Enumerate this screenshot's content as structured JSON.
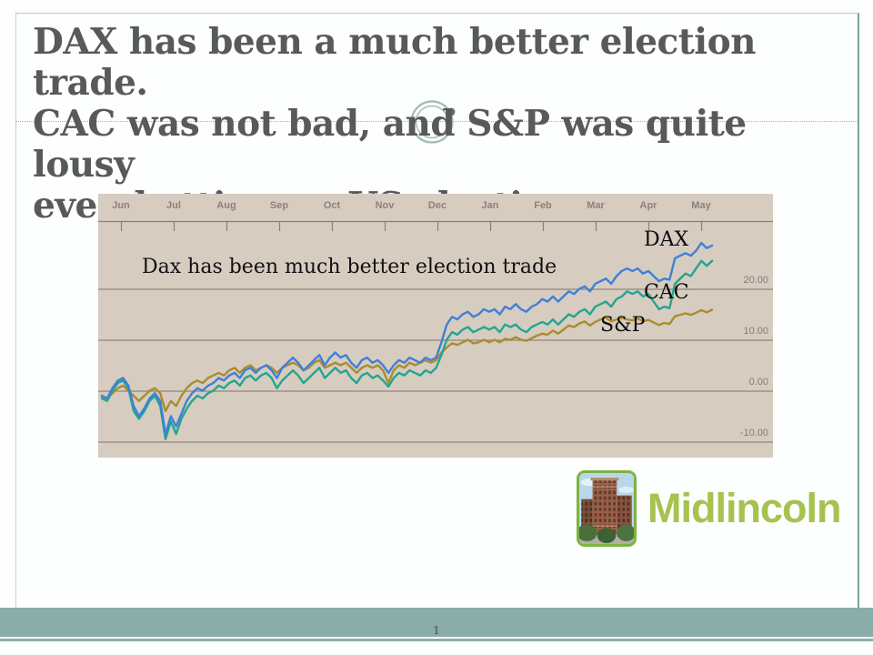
{
  "slide": {
    "title_lines": [
      "DAX has been a much better election trade.",
      "CAC was not bad, and S&P was quite lousy",
      "even betting on US election"
    ],
    "page_number": "1"
  },
  "logo": {
    "name": "Midlincoln",
    "icon": "building-photo-icon",
    "accent_color": "#a6c24f",
    "border_color": "#7cb342"
  },
  "theme": {
    "footer_color": "#8badaa",
    "title_color": "#57595a",
    "ornament_color": "#a3bab7"
  },
  "chart_data": {
    "type": "line",
    "title_annotation": "Dax has been much better election trade",
    "plot_bg": "#d7ccc0",
    "grid_on": true,
    "gridline_color": "#8e857a",
    "axis_color": "#8a8176",
    "unit": "percent return since Jun",
    "x_axis": {
      "position": "top",
      "tick_labels": [
        "Jun",
        "Jul",
        "Aug",
        "Sep",
        "Oct",
        "Nov",
        "Dec",
        "Jan",
        "Feb",
        "Mar",
        "Apr",
        "May"
      ]
    },
    "y_axis": {
      "position": "right",
      "ticks": [
        20,
        10,
        0,
        -10
      ],
      "tick_labels": [
        "20.00",
        "10.00",
        "0.00",
        "-10.00"
      ],
      "ylim": [
        -14,
        32
      ]
    },
    "legend_position": "inline-labels-right",
    "series": [
      {
        "name": "S&P",
        "color": "#a98d2e",
        "values": [
          -1,
          -1.5,
          -0.5,
          0.5,
          1,
          0,
          -1,
          -2,
          -1,
          0,
          0.5,
          -0.5,
          -4,
          -2,
          -3,
          -1,
          0.5,
          1.5,
          2,
          1.5,
          2.5,
          3,
          3.5,
          3,
          4,
          4.5,
          3.5,
          4.5,
          5,
          4,
          4.5,
          5,
          4.5,
          3.5,
          4.5,
          5,
          5.5,
          5,
          4,
          4.5,
          5.5,
          6,
          4.5,
          5,
          5.5,
          5,
          5.5,
          4.5,
          3.5,
          4.5,
          5,
          4.5,
          5,
          4,
          1.5,
          4,
          5,
          4.5,
          5.5,
          5,
          5.5,
          6,
          5.5,
          6,
          7.5,
          8.5,
          9.3,
          9,
          9.5,
          10,
          9.3,
          9.5,
          10,
          9.5,
          10,
          9.5,
          10.2,
          10,
          10.5,
          10,
          9.8,
          10.3,
          10.8,
          11.2,
          11,
          11.8,
          11.2,
          12,
          12.8,
          12.5,
          13.2,
          13.6,
          12.8,
          13.5,
          14,
          14.3,
          13.6,
          14,
          14.3,
          14,
          13.8,
          14.2,
          13.6,
          13.9,
          13.4,
          12.9,
          13.3,
          13.1,
          14.6,
          14.9,
          15.2,
          14.9,
          15.3,
          15.8,
          15.4,
          15.9
        ]
      },
      {
        "name": "CAC",
        "color": "#23a68f",
        "values": [
          -1.5,
          -2,
          0,
          1.5,
          2,
          0.5,
          -4,
          -5.5,
          -4,
          -2,
          -1,
          -3,
          -9.5,
          -6,
          -8.5,
          -5.5,
          -3.5,
          -2,
          -1,
          -1.5,
          -0.5,
          0,
          1,
          0.5,
          1.5,
          2,
          1,
          2.5,
          3,
          2,
          3,
          3.5,
          2.5,
          0.5,
          2,
          3,
          4,
          3,
          1.5,
          2.5,
          3.5,
          4.5,
          2.5,
          3.5,
          4.5,
          3.5,
          4,
          2.5,
          1.5,
          3,
          3.5,
          2.5,
          3,
          2,
          0.8,
          2.5,
          3.5,
          3,
          4,
          3.5,
          3,
          4,
          3.5,
          4.5,
          7,
          10,
          11.5,
          11,
          12,
          12.5,
          11.5,
          12,
          12.5,
          12,
          12.5,
          11.5,
          13,
          12.5,
          13,
          12,
          11.5,
          12.5,
          13,
          13.5,
          13,
          14,
          13,
          14,
          15,
          14.5,
          15.5,
          16,
          15,
          16.5,
          17,
          17.5,
          16.5,
          18,
          18.5,
          19.5,
          19,
          19.5,
          18.5,
          19,
          17.5,
          16,
          16.5,
          16.2,
          21,
          22,
          23,
          22.5,
          24,
          25.5,
          24.5,
          25.5
        ]
      },
      {
        "name": "DAX",
        "color": "#3f80d8",
        "values": [
          -1,
          -1.5,
          0.5,
          2,
          2.5,
          1,
          -3,
          -5,
          -3.5,
          -1.5,
          -0.5,
          -2,
          -8.5,
          -5,
          -7,
          -4.5,
          -2,
          -0.5,
          0.5,
          0,
          1,
          1.5,
          2.5,
          2,
          3,
          3.5,
          2.5,
          4,
          4.5,
          3.5,
          4.5,
          5,
          4,
          2.5,
          4.5,
          5.5,
          6.5,
          5.5,
          4,
          5,
          6,
          7,
          5,
          6.5,
          7.5,
          6.5,
          7,
          5.5,
          4.5,
          6,
          6.5,
          5.5,
          6,
          5,
          3.5,
          5,
          6,
          5.5,
          6.5,
          6,
          5.5,
          6.5,
          6,
          6.5,
          9.5,
          13,
          14.5,
          14,
          15,
          15.5,
          14.5,
          15,
          16,
          15.5,
          16,
          15,
          16.5,
          16,
          17,
          16,
          15.5,
          16.5,
          17,
          18,
          17.5,
          18.5,
          17.5,
          18.5,
          19.5,
          19,
          20,
          20.5,
          19.5,
          21,
          21.5,
          22,
          21,
          22.5,
          23.5,
          24,
          23.5,
          24,
          23,
          23.5,
          22.5,
          21.5,
          22,
          21.8,
          26,
          26.5,
          27,
          26.5,
          27.5,
          29,
          28,
          28.5
        ]
      }
    ],
    "series_label_order_top_to_bottom": [
      "DAX",
      "CAC",
      "S&P"
    ]
  }
}
